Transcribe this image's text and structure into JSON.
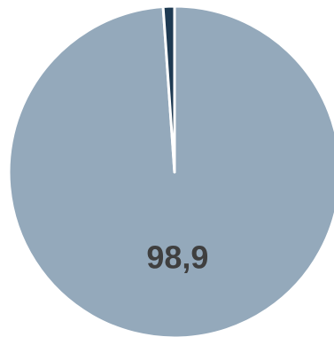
{
  "chart_data": {
    "type": "pie",
    "title": "",
    "slices": [
      {
        "value": 98.9,
        "label": "98,9",
        "color": "#94a9bb"
      },
      {
        "value": 1.1,
        "label": "",
        "color": "#1e3a52"
      }
    ],
    "start_angle_deg": 0,
    "direction": "clockwise",
    "slice_border_color": "#ffffff",
    "label_color": "#3f3f3f",
    "legend": "none"
  }
}
